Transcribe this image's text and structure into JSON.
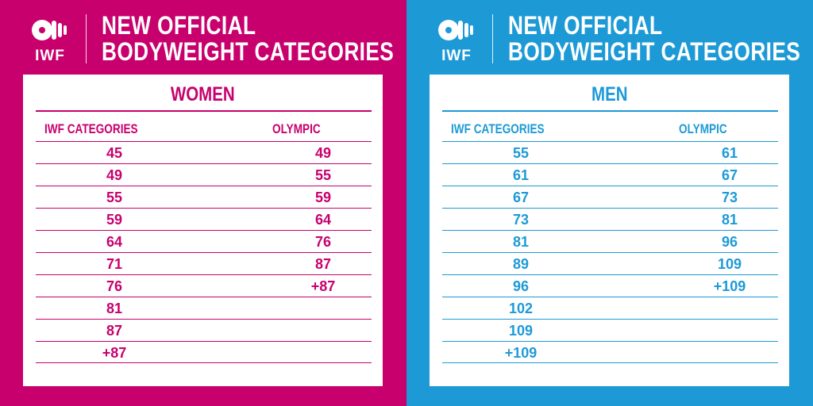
{
  "women_panel": {
    "logo_text": "IWF",
    "title_line1": "NEW OFFICIAL",
    "title_line2": "BODYWEIGHT CATEGORIES",
    "heading": "WOMEN",
    "col_iwf": "IWF CATEGORIES",
    "col_olympic": "OLYMPIC",
    "rows": [
      {
        "iwf": "45",
        "olympic": "49"
      },
      {
        "iwf": "49",
        "olympic": "55"
      },
      {
        "iwf": "55",
        "olympic": "59"
      },
      {
        "iwf": "59",
        "olympic": "64"
      },
      {
        "iwf": "64",
        "olympic": "76"
      },
      {
        "iwf": "71",
        "olympic": "87"
      },
      {
        "iwf": "76",
        "olympic": "+87"
      },
      {
        "iwf": "81",
        "olympic": ""
      },
      {
        "iwf": "87",
        "olympic": ""
      },
      {
        "iwf": "+87",
        "olympic": ""
      }
    ]
  },
  "men_panel": {
    "logo_text": "IWF",
    "title_line1": "NEW OFFICIAL",
    "title_line2": "BODYWEIGHT CATEGORIES",
    "heading": "MEN",
    "col_iwf": "IWF CATEGORIES",
    "col_olympic": "OLYMPIC",
    "rows": [
      {
        "iwf": "55",
        "olympic": "61"
      },
      {
        "iwf": "61",
        "olympic": "67"
      },
      {
        "iwf": "67",
        "olympic": "73"
      },
      {
        "iwf": "73",
        "olympic": "81"
      },
      {
        "iwf": "81",
        "olympic": "96"
      },
      {
        "iwf": "89",
        "olympic": "109"
      },
      {
        "iwf": "96",
        "olympic": "+109"
      },
      {
        "iwf": "102",
        "olympic": ""
      },
      {
        "iwf": "109",
        "olympic": ""
      },
      {
        "iwf": "+109",
        "olympic": ""
      }
    ]
  },
  "colors": {
    "women_accent": "#c8006e",
    "men_accent": "#1d9ad6",
    "card_bg": "#ffffff"
  },
  "icons": {
    "logo": "iwf-barbell-plates-icon"
  }
}
